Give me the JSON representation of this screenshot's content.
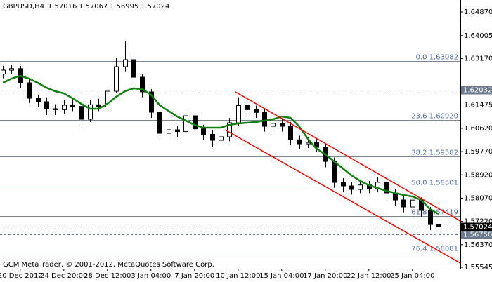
{
  "chart_data": {
    "type": "candlestick",
    "title": "GBPUSD,H4",
    "header_values": [
      1.57016,
      1.57067,
      1.56995,
      1.57024
    ],
    "footer": "GCM MetaTrader, © 2001-2012, MetaQuotes Software Corp.",
    "categories": [
      null,
      null,
      "20 Dec 2012",
      null,
      null,
      null,
      null,
      "24 Dec 20:00",
      null,
      null,
      null,
      null,
      "28 Dec 12:00",
      null,
      null,
      null,
      null,
      "3 Jan 04:00",
      null,
      null,
      null,
      null,
      "7 Jan 20:00",
      null,
      null,
      null,
      null,
      "10 Jan 12:00",
      null,
      null,
      null,
      null,
      "15 Jan 04:00",
      null,
      null,
      null,
      null,
      "17 Jan 20:00",
      null,
      null,
      null,
      null,
      "22 Jan 12:00",
      null,
      null,
      null,
      null,
      "25 Jan 04:00",
      null,
      null,
      null
    ],
    "open": [
      1.626,
      1.62744,
      1.628,
      1.62282,
      1.61719,
      1.61591,
      1.61334,
      1.613,
      1.61463,
      1.6142,
      1.6095,
      1.6148,
      1.614,
      1.61975,
      1.62872,
      1.63128,
      1.62487,
      1.6195,
      1.61206,
      1.60438,
      1.60566,
      1.605,
      1.61078,
      1.606,
      1.604,
      1.60182,
      1.6031,
      1.60822,
      1.6145,
      1.613,
      1.612,
      1.60694,
      1.608,
      1.60694,
      1.602,
      1.60053,
      1.601,
      1.59925,
      1.59413,
      1.58644,
      1.58516,
      1.58388,
      1.5855,
      1.584,
      1.5865,
      1.5826,
      1.58004,
      1.57748,
      1.58,
      1.5762,
      1.57107
    ],
    "high": [
      1.629,
      1.6295,
      1.629,
      1.624,
      1.6185,
      1.6175,
      1.615,
      1.6165,
      1.617,
      1.6155,
      1.6165,
      1.617,
      1.622,
      1.632,
      1.638,
      1.633,
      1.626,
      1.6205,
      1.613,
      1.6075,
      1.607,
      1.6125,
      1.612,
      1.6075,
      1.6055,
      1.605,
      1.61,
      1.6175,
      1.6165,
      1.6145,
      1.6135,
      1.61,
      1.6095,
      1.6085,
      1.6035,
      1.603,
      1.6025,
      1.6005,
      1.5955,
      1.588,
      1.5865,
      1.5875,
      1.587,
      1.5885,
      1.588,
      1.584,
      1.5815,
      1.582,
      1.581,
      1.5775,
      1.572
    ],
    "low": [
      1.6245,
      1.626,
      1.621,
      1.6155,
      1.614,
      1.611,
      1.611,
      1.6115,
      1.6125,
      1.607,
      1.6085,
      1.6125,
      1.613,
      1.619,
      1.627,
      1.623,
      1.6175,
      1.61,
      1.602,
      1.6025,
      1.603,
      1.604,
      1.6045,
      1.602,
      1.5995,
      1.6,
      1.6015,
      1.607,
      1.6115,
      1.61,
      1.605,
      1.6055,
      1.605,
      1.6,
      1.5985,
      1.599,
      1.5975,
      1.592,
      1.5845,
      1.583,
      1.582,
      1.5825,
      1.5825,
      1.583,
      1.581,
      1.578,
      1.5755,
      1.576,
      1.574,
      1.569,
      1.5685
    ],
    "close": [
      1.62744,
      1.628,
      1.62282,
      1.61719,
      1.61591,
      1.61334,
      1.613,
      1.61463,
      1.6142,
      1.6095,
      1.6148,
      1.614,
      1.61975,
      1.62872,
      1.63128,
      1.62487,
      1.6195,
      1.61206,
      1.60438,
      1.60566,
      1.605,
      1.61078,
      1.606,
      1.604,
      1.60182,
      1.6031,
      1.60822,
      1.6145,
      1.613,
      1.612,
      1.60694,
      1.608,
      1.60694,
      1.602,
      1.60053,
      1.601,
      1.59925,
      1.59413,
      1.58644,
      1.58516,
      1.58388,
      1.5855,
      1.584,
      1.5865,
      1.5826,
      1.58004,
      1.57748,
      1.58,
      1.5762,
      1.57107,
      1.57024
    ],
    "moving_average": {
      "color": "#108010",
      "values": [
        1.62282,
        1.62436,
        1.62539,
        1.62436,
        1.62282,
        1.62103,
        1.61975,
        1.61898,
        1.61719,
        1.61514,
        1.61334,
        1.61334,
        1.61514,
        1.6177,
        1.61975,
        1.62077,
        1.62052,
        1.61847,
        1.61463,
        1.61258,
        1.61053,
        1.60899,
        1.60745,
        1.60643,
        1.60643,
        1.60643,
        1.60745,
        1.60796,
        1.60822,
        1.60848,
        1.60899,
        1.6095,
        1.61053,
        1.61001,
        1.60694,
        1.60233,
        1.59874,
        1.59669,
        1.59413,
        1.59157,
        1.58901,
        1.58696,
        1.58542,
        1.58439,
        1.58337,
        1.5826,
        1.58183,
        1.58132,
        1.58004,
        1.57671,
        1.57491
      ]
    },
    "trendlines": [
      {
        "color": "#ff0000",
        "x": [
          26.7,
          52.5
        ],
        "values": [
          1.61949,
          1.57235
        ]
      },
      {
        "color": "#ff0000",
        "x": [
          25.5,
          52.5
        ],
        "values": [
          1.60566,
          1.55698
        ]
      }
    ],
    "fib_color": "#7a8798",
    "fib_label_color": "#4a6aa5",
    "fib_levels": [
      {
        "value": 1.63082,
        "label": "0.0 1.63082"
      },
      {
        "value": 1.6092,
        "label": "23.6 1.60920"
      },
      {
        "value": 1.59582,
        "label": "38.2 1.59582"
      },
      {
        "value": 1.58501,
        "label": "50.0 1.58501"
      },
      {
        "value": 1.57419,
        "label": "61.8 1.57419"
      },
      {
        "value": 1.56081,
        "label": "76.4 1.56081"
      }
    ],
    "price_lines": [
      {
        "value": 1.62032,
        "label": "1.62032",
        "color": "#6a7a8c"
      },
      {
        "value": 1.5675,
        "label": "1.56750",
        "color": "#6a7a8c"
      },
      {
        "value": 1.57024,
        "label": "1.57024",
        "color": "#000000"
      }
    ],
    "ylim": [
      1.55494,
      1.65306
    ],
    "yticks": [
      {
        "value": 1.6487,
        "label": "1.64870"
      },
      {
        "value": 1.64005,
        "label": "1.64005"
      },
      {
        "value": 1.6317,
        "label": "1.63170"
      },
      {
        "value": 1.61475,
        "label": "1.61475"
      },
      {
        "value": 1.6062,
        "label": "1.60620"
      },
      {
        "value": 1.5977,
        "label": "1.59770"
      },
      {
        "value": 1.5892,
        "label": "1.58920"
      },
      {
        "value": 1.5807,
        "label": "1.58070"
      },
      {
        "value": 1.5722,
        "label": "1.57220"
      },
      {
        "value": 1.5637,
        "label": "1.56370"
      },
      {
        "value": 1.55545,
        "label": "1.55545"
      }
    ]
  }
}
